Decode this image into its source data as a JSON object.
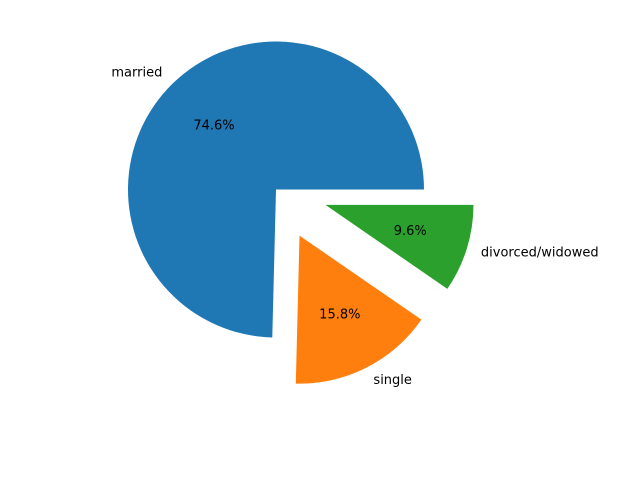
{
  "chart_data": {
    "type": "pie",
    "title": "",
    "slices": [
      {
        "name": "married",
        "value": 74.6,
        "pct_label": "74.6%",
        "color": "#1f77b4",
        "exploded": false
      },
      {
        "name": "single",
        "value": 15.8,
        "pct_label": "15.8%",
        "color": "#ff7f0e",
        "exploded": true
      },
      {
        "name": "divorced/widowed",
        "value": 9.6,
        "pct_label": "9.6%",
        "color": "#2ca02c",
        "exploded": true
      }
    ],
    "start_angle_deg": 0,
    "direction": "counterclockwise",
    "legend": "none"
  }
}
